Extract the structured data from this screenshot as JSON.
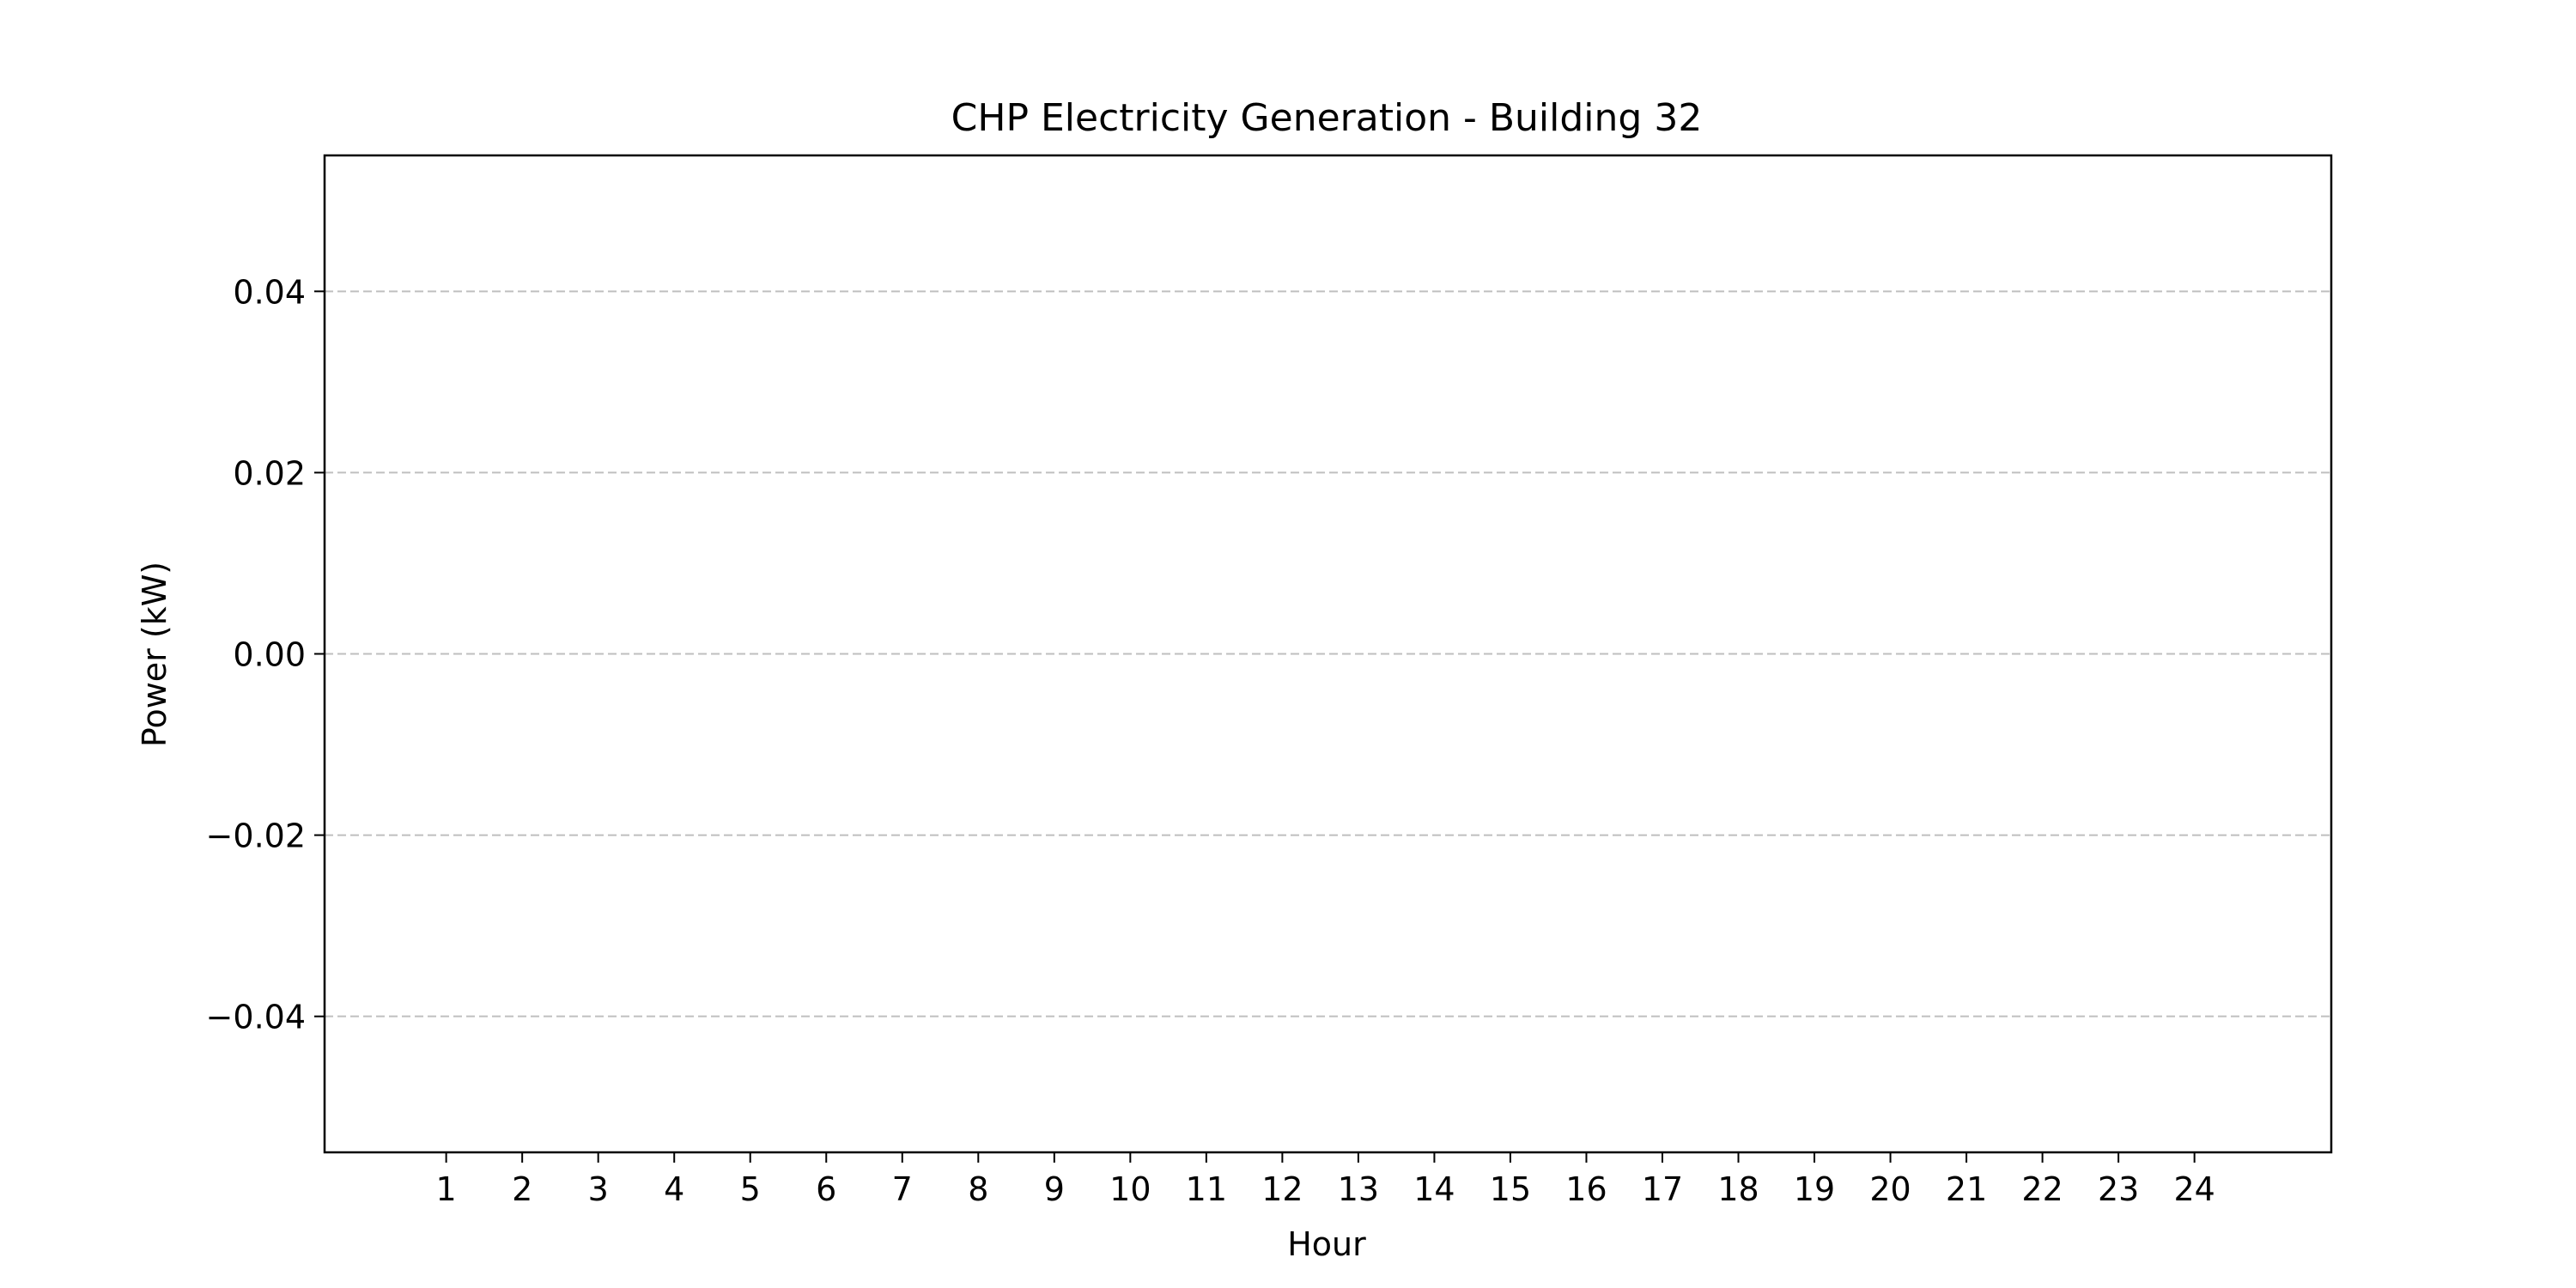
{
  "chart_data": {
    "type": "bar",
    "title": "CHP Electricity Generation - Building 32",
    "xlabel": "Hour",
    "ylabel": "Power (kW)",
    "categories": [
      "1",
      "2",
      "3",
      "4",
      "5",
      "6",
      "7",
      "8",
      "9",
      "10",
      "11",
      "12",
      "13",
      "14",
      "15",
      "16",
      "17",
      "18",
      "19",
      "20",
      "21",
      "22",
      "23",
      "24"
    ],
    "values": [
      0,
      0,
      0,
      0,
      0,
      0,
      0,
      0,
      0,
      0,
      0,
      0,
      0,
      0,
      0,
      0,
      0,
      0,
      0,
      0,
      0,
      0,
      0,
      0
    ],
    "xlim": [
      -0.6,
      25.8
    ],
    "ylim": [
      -0.055,
      0.055
    ],
    "yticks": [
      -0.04,
      -0.02,
      0.0,
      0.02,
      0.04
    ],
    "ytick_labels": [
      "−0.04",
      "−0.02",
      "0.00",
      "0.02",
      "0.04"
    ],
    "grid": "y-dashed",
    "legend": "none"
  }
}
